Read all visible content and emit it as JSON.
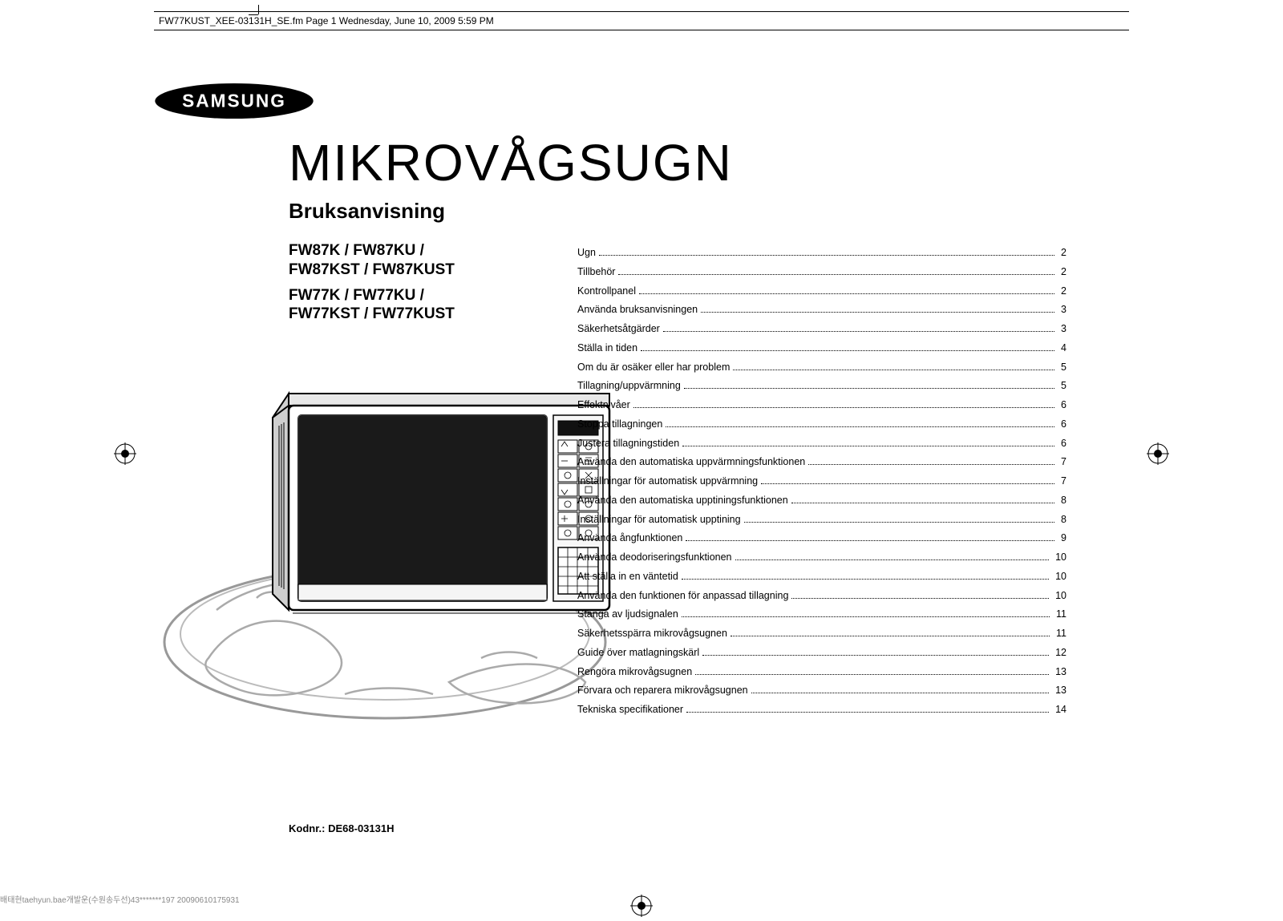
{
  "file_header": "FW77KUST_XEE-03131H_SE.fm  Page 1  Wednesday, June 10, 2009  5:59 PM",
  "brand": "SAMSUNG",
  "title": "MIKROVÅGSUGN",
  "subtitle": "Bruksanvisning",
  "models": {
    "group1_line1": "FW87K / FW87KU /",
    "group1_line2": "FW87KST / FW87KUST",
    "group2_line1": "FW77K / FW77KU /",
    "group2_line2": "FW77KST / FW77KUST"
  },
  "toc": [
    {
      "label": "Ugn",
      "page": "2"
    },
    {
      "label": "Tillbehör",
      "page": "2"
    },
    {
      "label": "Kontrollpanel",
      "page": "2"
    },
    {
      "label": "Använda bruksanvisningen",
      "page": "3"
    },
    {
      "label": "Säkerhetsåtgärder",
      "page": "3"
    },
    {
      "label": "Ställa in tiden",
      "page": "4"
    },
    {
      "label": "Om du är osäker eller har problem",
      "page": "5"
    },
    {
      "label": "Tillagning/uppvärmning",
      "page": "5"
    },
    {
      "label": "Effektnivåer",
      "page": "6"
    },
    {
      "label": "Stoppa tillagningen",
      "page": "6"
    },
    {
      "label": "Justera tillagningstiden",
      "page": "6"
    },
    {
      "label": "Använda den automatiska uppvärmningsfunktionen",
      "page": "7"
    },
    {
      "label": "Inställningar för automatisk uppvärmning",
      "page": "7"
    },
    {
      "label": "Använda den automatiska upptiningsfunktionen",
      "page": "8"
    },
    {
      "label": "Inställningar för automatisk upptining",
      "page": "8"
    },
    {
      "label": "Använda ångfunktionen",
      "page": "9"
    },
    {
      "label": "Använda deodoriseringsfunktionen",
      "page": "10"
    },
    {
      "label": "Att ställa in en väntetid",
      "page": "10"
    },
    {
      "label": "Använda den funktionen för anpassad tillagning",
      "page": "10"
    },
    {
      "label": "Stänga av ljudsignalen",
      "page": "11"
    },
    {
      "label": "Säkerhetsspärra mikrovågsugnen",
      "page": "11"
    },
    {
      "label": "Guide över matlagningskärl",
      "page": "12"
    },
    {
      "label": "Rengöra mikrovågsugnen",
      "page": "13"
    },
    {
      "label": "Förvara och reparera mikrovågsugnen",
      "page": "13"
    },
    {
      "label": "Tekniska specifikationer",
      "page": "14"
    }
  ],
  "kodnr": "Kodnr.: DE68-03131H",
  "footer_tiny": "배태현taehyun.bae개발운(수원송두선)43*******197 20090610175931",
  "colors": {
    "text": "#000000",
    "background": "#ffffff",
    "footer_muted": "#888888"
  },
  "illustration": {
    "microwave": {
      "body_stroke": "#000000",
      "body_fill": "#ffffff",
      "door_fill": "#1a1a1a",
      "panel_buttons_rows": 6
    }
  }
}
